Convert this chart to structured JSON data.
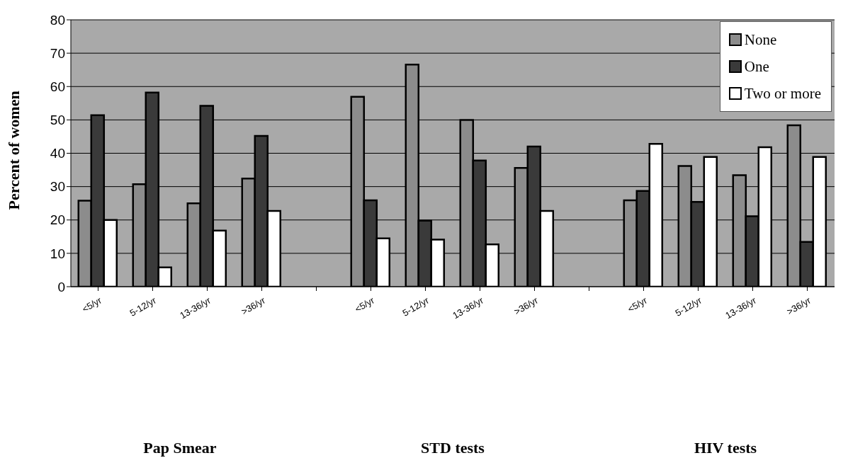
{
  "chart_data": {
    "type": "bar",
    "categories": [
      "<5/yr",
      "5-12/yr",
      "13-36/yr",
      ">36/yr",
      null,
      "<5/yr",
      "5-12/yr",
      "13-36/yr",
      ">36/yr",
      null,
      "<5/yr",
      "5-12/yr",
      "13-36/yr",
      ">36/yr"
    ],
    "series": [
      {
        "name": "None",
        "color": "#8c8c8c",
        "values": [
          25.8,
          30.7,
          25.0,
          32.4,
          null,
          56.9,
          66.6,
          50.0,
          35.6,
          null,
          25.9,
          36.2,
          33.4,
          48.4
        ]
      },
      {
        "name": "One",
        "color": "#3a3a3a",
        "values": [
          51.4,
          58.2,
          54.2,
          45.2,
          null,
          25.9,
          19.8,
          37.8,
          42.0,
          null,
          28.7,
          25.4,
          21.1,
          13.4
        ]
      },
      {
        "name": "Two or more",
        "color": "#ffffff",
        "values": [
          20.0,
          5.8,
          16.8,
          22.7,
          null,
          14.5,
          14.1,
          12.7,
          22.7,
          null,
          42.8,
          38.9,
          41.8,
          38.9
        ]
      }
    ],
    "ylabel": "Percent of women",
    "ylim": [
      0,
      80
    ],
    "yticks": [
      0,
      10,
      20,
      30,
      40,
      50,
      60,
      70,
      80
    ],
    "annotations": [
      "Pap Smear",
      "STD tests",
      "HIV tests"
    ],
    "grid": "y",
    "legend": "top right"
  }
}
